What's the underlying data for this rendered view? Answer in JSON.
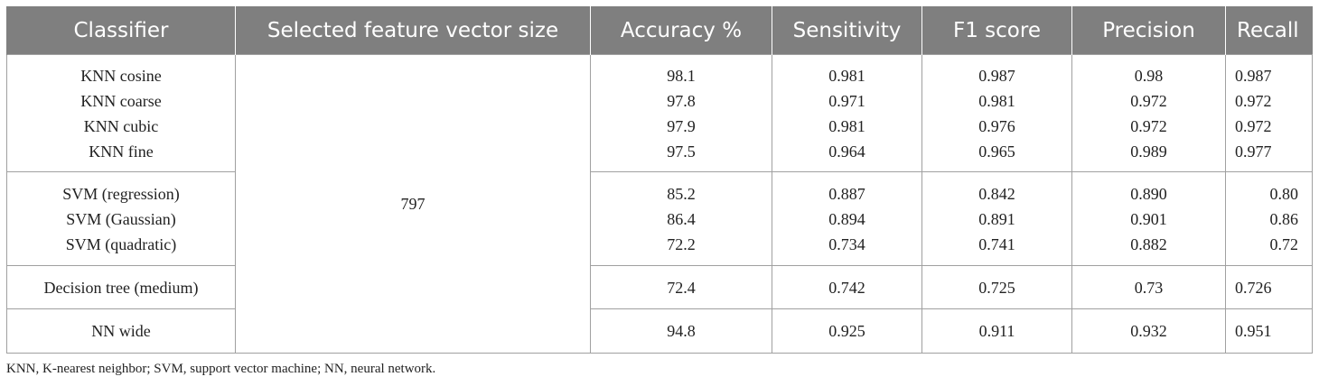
{
  "headers": [
    "Classifier",
    "Selected feature vector size",
    "Accuracy %",
    "Sensitivity",
    "F1 score",
    "Precision",
    "Recall"
  ],
  "feature_size": "797",
  "groups": [
    {
      "classifiers": [
        "KNN cosine",
        "KNN coarse",
        "KNN cubic",
        "KNN fine"
      ],
      "accuracy": [
        "98.1",
        "97.8",
        "97.9",
        "97.5"
      ],
      "sensitivity": [
        "0.981",
        "0.971",
        "0.981",
        "0.964"
      ],
      "f1": [
        "0.987",
        "0.981",
        "0.976",
        "0.965"
      ],
      "precision": [
        "0.98",
        "0.972",
        "0.972",
        "0.989"
      ],
      "recall": [
        "0.987",
        "0.972",
        "0.972",
        "0.977"
      ]
    },
    {
      "classifiers": [
        "SVM (regression)",
        "SVM (Gaussian)",
        "SVM (quadratic)"
      ],
      "accuracy": [
        "85.2",
        "86.4",
        "72.2"
      ],
      "sensitivity": [
        "0.887",
        "0.894",
        "0.734"
      ],
      "f1": [
        "0.842",
        "0.891",
        "0.741"
      ],
      "precision": [
        "0.890",
        "0.901",
        "0.882"
      ],
      "recall": [
        "0.80",
        "0.86",
        "0.72"
      ]
    },
    {
      "classifiers": [
        "Decision tree (medium)"
      ],
      "accuracy": [
        "72.4"
      ],
      "sensitivity": [
        "0.742"
      ],
      "f1": [
        "0.725"
      ],
      "precision": [
        "0.73"
      ],
      "recall": [
        "0.726"
      ]
    },
    {
      "classifiers": [
        "NN wide"
      ],
      "accuracy": [
        "94.8"
      ],
      "sensitivity": [
        "0.925"
      ],
      "f1": [
        "0.911"
      ],
      "precision": [
        "0.932"
      ],
      "recall": [
        "0.951"
      ]
    }
  ],
  "footnote": "KNN, K-nearest neighbor; SVM, support vector machine; NN, neural network."
}
